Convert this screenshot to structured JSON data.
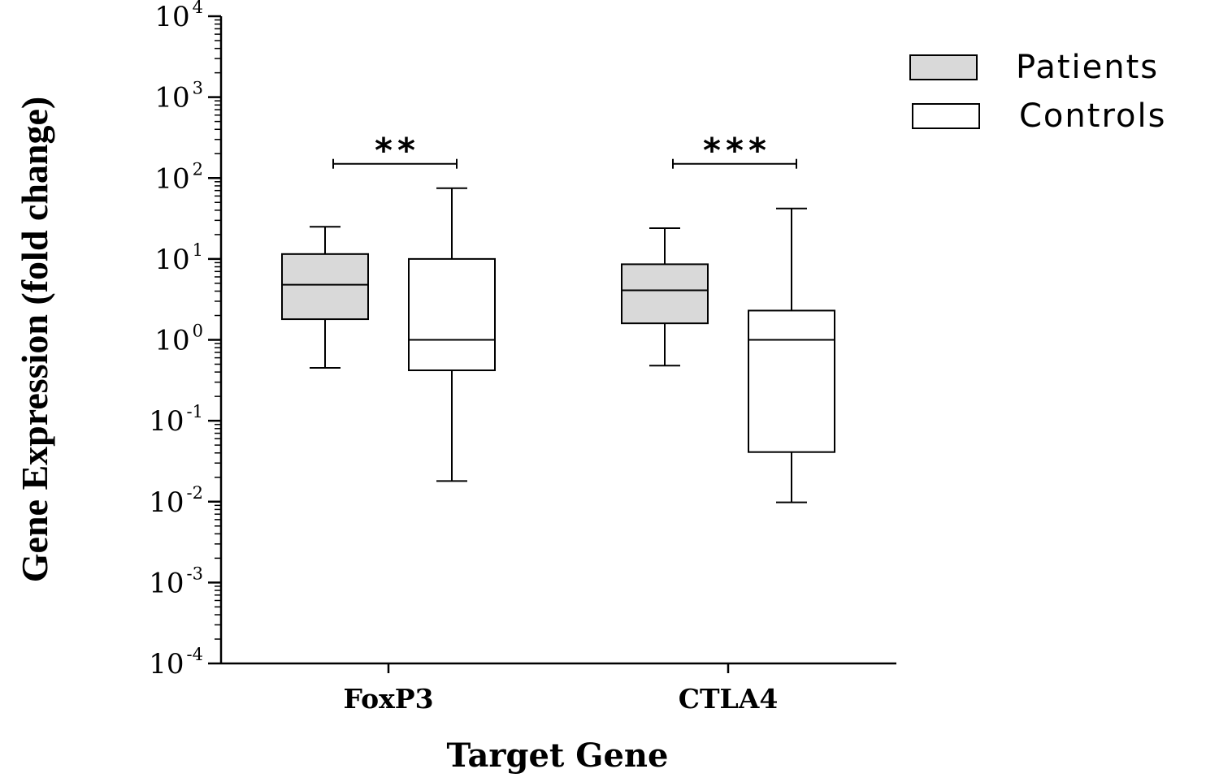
{
  "chart_data": {
    "type": "box",
    "title": "",
    "xlabel": "Target Gene",
    "ylabel": "Gene Expression (fold change)",
    "yscale": "log",
    "ylim": [
      0.0001,
      10000
    ],
    "yticks": [
      {
        "base": "10",
        "exp": "4",
        "value": 10000
      },
      {
        "base": "10",
        "exp": "3",
        "value": 1000
      },
      {
        "base": "10",
        "exp": "2",
        "value": 100
      },
      {
        "base": "10",
        "exp": "1",
        "value": 10
      },
      {
        "base": "10",
        "exp": "0",
        "value": 1
      },
      {
        "base": "10",
        "exp": "-1",
        "value": 0.1
      },
      {
        "base": "10",
        "exp": "-2",
        "value": 0.01
      },
      {
        "base": "10",
        "exp": "-3",
        "value": 0.001
      },
      {
        "base": "10",
        "exp": "-4",
        "value": 0.0001
      }
    ],
    "categories": [
      "FoxP3",
      "CTLA4"
    ],
    "legend_position": "top-right",
    "series": [
      {
        "name": "Patients",
        "fill": "#d9d9d9",
        "boxes": [
          {
            "whisker_low": 0.45,
            "q1": 1.8,
            "median": 4.8,
            "q3": 11.5,
            "whisker_high": 25
          },
          {
            "whisker_low": 0.48,
            "q1": 1.6,
            "median": 4.1,
            "q3": 8.6,
            "whisker_high": 24
          }
        ]
      },
      {
        "name": "Controls",
        "fill": "#ffffff",
        "boxes": [
          {
            "whisker_low": 0.018,
            "q1": 0.42,
            "median": 1.0,
            "q3": 10,
            "whisker_high": 75
          },
          {
            "whisker_low": 0.0098,
            "q1": 0.041,
            "median": 1.0,
            "q3": 2.3,
            "whisker_high": 42
          }
        ]
      }
    ],
    "significance": [
      {
        "category": "FoxP3",
        "label": "**",
        "y": 150
      },
      {
        "category": "CTLA4",
        "label": "***",
        "y": 150
      }
    ],
    "grid": false
  }
}
